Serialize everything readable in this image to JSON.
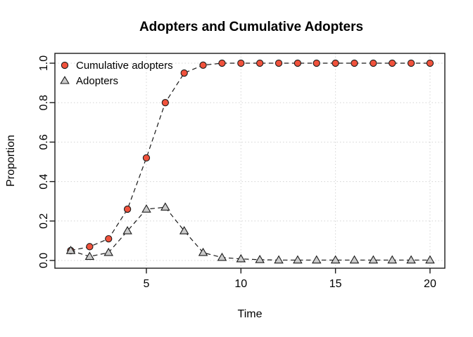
{
  "chart_data": {
    "type": "line",
    "title": "Adopters and Cumulative Adopters",
    "xlabel": "Time",
    "ylabel": "Proportion",
    "x": [
      1,
      2,
      3,
      4,
      5,
      6,
      7,
      8,
      9,
      10,
      11,
      12,
      13,
      14,
      15,
      16,
      17,
      18,
      19,
      20
    ],
    "series": [
      {
        "name": "Cumulative adopters",
        "marker": "circle",
        "marker_fill": "#f0523c",
        "values": [
          0.05,
          0.07,
          0.11,
          0.26,
          0.52,
          0.8,
          0.95,
          0.99,
          1.0,
          1.0,
          1.0,
          1.0,
          1.0,
          1.0,
          1.0,
          1.0,
          1.0,
          1.0,
          1.0,
          1.0
        ]
      },
      {
        "name": "Adopters",
        "marker": "triangle",
        "marker_fill": "#cbcbcb",
        "values": [
          0.05,
          0.02,
          0.04,
          0.15,
          0.26,
          0.27,
          0.15,
          0.04,
          0.015,
          0.008,
          0.004,
          0.002,
          0.002,
          0.002,
          0.002,
          0.002,
          0.002,
          0.002,
          0.002,
          0.002
        ]
      }
    ],
    "xticks": [
      {
        "v": 5,
        "label": "5"
      },
      {
        "v": 10,
        "label": "10"
      },
      {
        "v": 15,
        "label": "15"
      },
      {
        "v": 20,
        "label": "20"
      }
    ],
    "yticks": [
      {
        "v": 0.0,
        "label": "0.0"
      },
      {
        "v": 0.2,
        "label": "0.2"
      },
      {
        "v": 0.4,
        "label": "0.4"
      },
      {
        "v": 0.6,
        "label": "0.6"
      },
      {
        "v": 0.8,
        "label": "0.8"
      },
      {
        "v": 1.0,
        "label": "1.0"
      }
    ],
    "xlim": [
      1,
      20
    ],
    "ylim": [
      0.0,
      1.0
    ],
    "grid": "dotted",
    "legend_position": "top-left",
    "line_style": "dashed",
    "line_color": "#1a1a1a",
    "grid_color": "#d4d4d4",
    "axis_color": "#1a1a1a"
  }
}
